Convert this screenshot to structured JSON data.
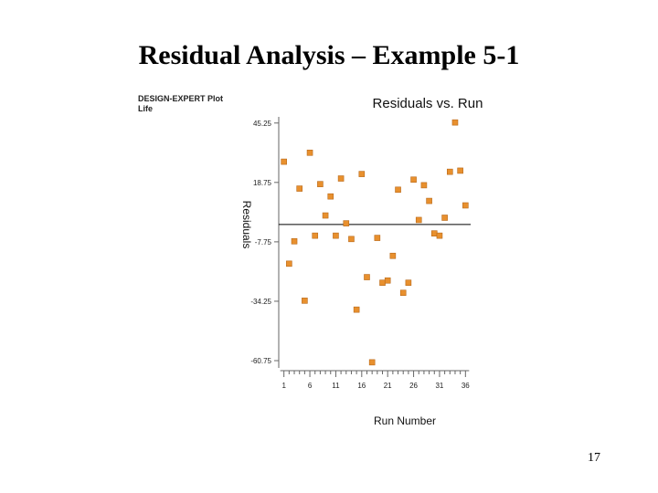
{
  "slide": {
    "title": "Residual Analysis – Example 5-1",
    "page_number": "17"
  },
  "software": {
    "line1": "DESIGN-EXPERT Plot",
    "line2": "Life"
  },
  "colors": {
    "point": "#e8902e",
    "point_edge": "#b8691a",
    "axis": "#666666",
    "zero_line": "#000000"
  },
  "chart_data": {
    "type": "scatter",
    "title": "Residuals vs. Run",
    "xlabel": "Run Number",
    "ylabel": "Residuals",
    "xlim": [
      0,
      37
    ],
    "ylim": [
      -64,
      48
    ],
    "xticks": [
      1,
      6,
      11,
      16,
      21,
      26,
      31,
      36
    ],
    "yticks": [
      45.25,
      18.75,
      -7.75,
      -34.25,
      -60.75
    ],
    "ytick_labels": [
      "45.25",
      "18.75",
      "-7.75",
      "-34.25",
      "-60.75"
    ],
    "reference_line_y": 0,
    "grid": false,
    "points": [
      {
        "x": 1,
        "y": 28
      },
      {
        "x": 2,
        "y": -17.5
      },
      {
        "x": 3,
        "y": -7.5
      },
      {
        "x": 4,
        "y": 16
      },
      {
        "x": 5,
        "y": -34
      },
      {
        "x": 6,
        "y": 32
      },
      {
        "x": 7,
        "y": -5
      },
      {
        "x": 8,
        "y": 18
      },
      {
        "x": 9,
        "y": 4
      },
      {
        "x": 10,
        "y": 12.5
      },
      {
        "x": 11,
        "y": -5
      },
      {
        "x": 12,
        "y": 20.5
      },
      {
        "x": 13,
        "y": 0.5
      },
      {
        "x": 14,
        "y": -6.5
      },
      {
        "x": 15,
        "y": -38
      },
      {
        "x": 16,
        "y": 22.5
      },
      {
        "x": 17,
        "y": -23.5
      },
      {
        "x": 18,
        "y": -61.5
      },
      {
        "x": 19,
        "y": -6
      },
      {
        "x": 20,
        "y": -26
      },
      {
        "x": 21,
        "y": -25
      },
      {
        "x": 22,
        "y": -14
      },
      {
        "x": 23,
        "y": 15.5
      },
      {
        "x": 24,
        "y": -30.5
      },
      {
        "x": 25,
        "y": -26
      },
      {
        "x": 26,
        "y": 20
      },
      {
        "x": 27,
        "y": 2
      },
      {
        "x": 28,
        "y": 17.5
      },
      {
        "x": 29,
        "y": 10.5
      },
      {
        "x": 30,
        "y": -4
      },
      {
        "x": 31,
        "y": -5
      },
      {
        "x": 32,
        "y": 3
      },
      {
        "x": 33,
        "y": 23.5
      },
      {
        "x": 34,
        "y": 45.5
      },
      {
        "x": 35,
        "y": 24
      },
      {
        "x": 36,
        "y": 8.5
      }
    ]
  }
}
